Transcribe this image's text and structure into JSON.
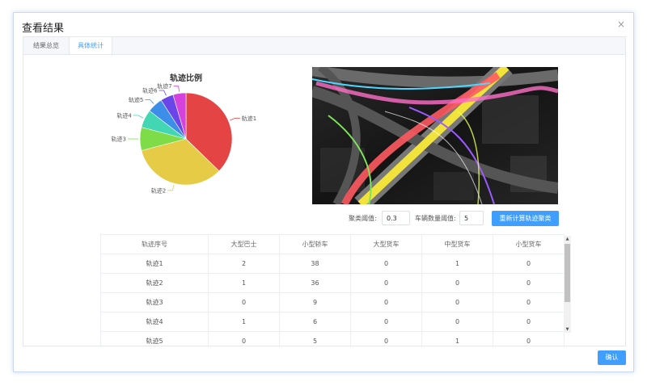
{
  "dialog": {
    "title": "查看结果",
    "close": "×"
  },
  "tabs": [
    {
      "label": "结果总览",
      "active": false
    },
    {
      "label": "具体统计",
      "active": true
    }
  ],
  "chart_data": {
    "type": "pie",
    "title": "轨迹比例",
    "labels": [
      "轨迹1",
      "轨迹2",
      "轨迹3",
      "轨迹4",
      "轨迹5",
      "轨迹6",
      "轨迹7"
    ],
    "values": [
      41,
      37,
      9,
      7,
      6,
      5,
      5
    ],
    "colors": [
      "#e44444",
      "#e6cb46",
      "#7ddc48",
      "#43d6b2",
      "#3d8ee8",
      "#6a46e8",
      "#d444dc"
    ],
    "legend": "none"
  },
  "controls": {
    "cluster_label": "聚类阈值:",
    "cluster_value": "0.3",
    "vehicle_label": "车辆数量阈值:",
    "vehicle_value": "5",
    "recalc_button": "重新计算轨迹聚类"
  },
  "table": {
    "headers": [
      "轨迹序号",
      "大型巴士",
      "小型轿车",
      "大型货车",
      "中型货车",
      "小型货车"
    ],
    "rows": [
      [
        "轨迹1",
        "2",
        "38",
        "0",
        "1",
        "0"
      ],
      [
        "轨迹2",
        "1",
        "36",
        "0",
        "0",
        "0"
      ],
      [
        "轨迹3",
        "0",
        "9",
        "0",
        "0",
        "0"
      ],
      [
        "轨迹4",
        "1",
        "6",
        "0",
        "0",
        "0"
      ],
      [
        "轨迹5",
        "0",
        "5",
        "0",
        "1",
        "0"
      ]
    ]
  },
  "footer": {
    "confirm_button": "确认"
  },
  "scroll_icons": {
    "up": "scroll-up-arrow-icon",
    "down": "scroll-down-arrow-icon"
  }
}
